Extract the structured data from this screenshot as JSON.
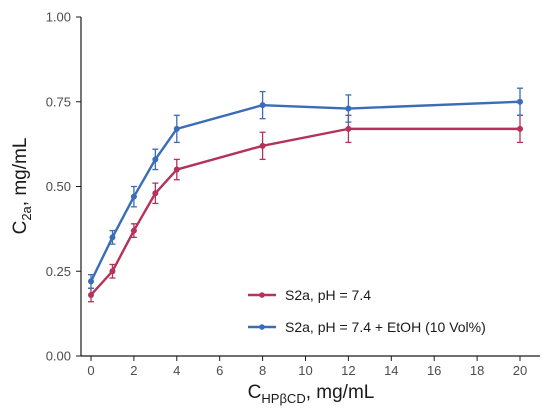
{
  "chart_data": {
    "type": "line",
    "title": "",
    "xlabel": {
      "main": "C",
      "sub": "HPβCD",
      "suffix": ", mg/mL"
    },
    "ylabel": {
      "main": "C",
      "sub": "2a",
      "suffix": ", mg/mL"
    },
    "xlim": [
      0,
      20
    ],
    "ylim": [
      0,
      1.0
    ],
    "xticks": [
      0,
      2,
      4,
      6,
      8,
      10,
      12,
      14,
      16,
      18,
      20
    ],
    "yticks": [
      0.0,
      0.25,
      0.5,
      0.75,
      1.0
    ],
    "ytick_labels": [
      "0.00",
      "0.25",
      "0.50",
      "0.75",
      "1.00"
    ],
    "grid": false,
    "legend_position": "bottom-right",
    "series": [
      {
        "name": "S2a, pH = 7.4",
        "color": "#B5325A",
        "points": [
          {
            "x": 0,
            "y": 0.18,
            "err": 0.02
          },
          {
            "x": 1,
            "y": 0.25,
            "err": 0.02
          },
          {
            "x": 2,
            "y": 0.37,
            "err": 0.02
          },
          {
            "x": 3,
            "y": 0.48,
            "err": 0.03
          },
          {
            "x": 4,
            "y": 0.55,
            "err": 0.03
          },
          {
            "x": 8,
            "y": 0.62,
            "err": 0.04
          },
          {
            "x": 12,
            "y": 0.67,
            "err": 0.04
          },
          {
            "x": 20,
            "y": 0.67,
            "err": 0.04
          }
        ]
      },
      {
        "name": "S2a, pH = 7.4 + EtOH (10 Vol%)",
        "color": "#3A6CB8",
        "points": [
          {
            "x": 0,
            "y": 0.22,
            "err": 0.02
          },
          {
            "x": 1,
            "y": 0.35,
            "err": 0.02
          },
          {
            "x": 2,
            "y": 0.47,
            "err": 0.03
          },
          {
            "x": 3,
            "y": 0.58,
            "err": 0.03
          },
          {
            "x": 4,
            "y": 0.67,
            "err": 0.04
          },
          {
            "x": 8,
            "y": 0.74,
            "err": 0.04
          },
          {
            "x": 12,
            "y": 0.73,
            "err": 0.04
          },
          {
            "x": 20,
            "y": 0.75,
            "err": 0.04
          }
        ]
      }
    ]
  }
}
